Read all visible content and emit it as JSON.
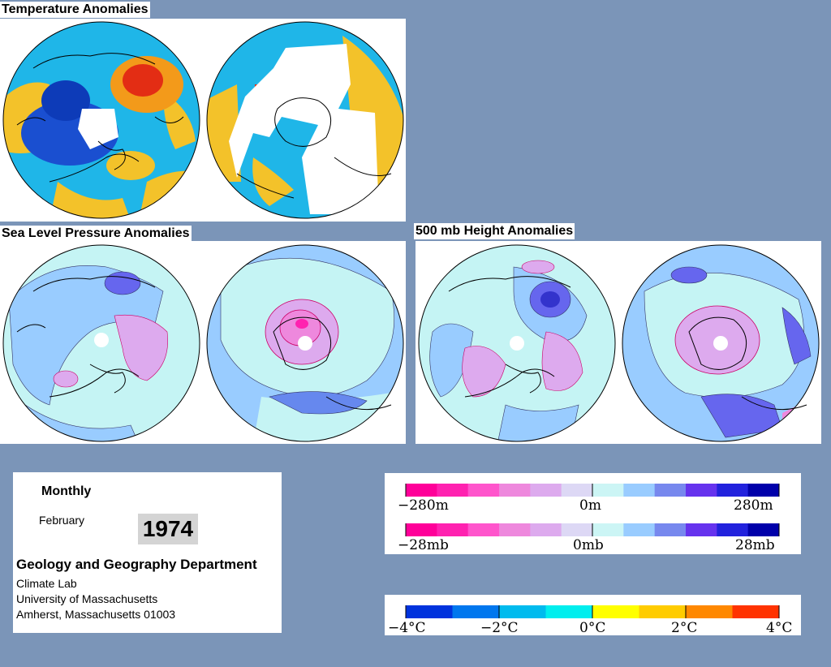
{
  "sections": {
    "temperature_title": "Temperature Anomalies",
    "slp_title": "Sea Level Pressure Anomalies",
    "height_title": "500 mb Height Anomalies"
  },
  "info": {
    "period": "Monthly",
    "month": "February",
    "year": "1974",
    "department": "Geology and Geography Department",
    "lab": "Climate Lab",
    "university": "University of Massachusetts",
    "address": "Amherst, Massachusetts 01003"
  },
  "legends": {
    "height": {
      "left": "−280m",
      "center": "0m",
      "right": "280m"
    },
    "pressure": {
      "left": "−28mb",
      "center": "0mb",
      "right": "28mb"
    },
    "temperature": [
      "−4°C",
      "−2°C",
      "0°C",
      "2°C",
      "4°C"
    ]
  },
  "colors": {
    "background": "#7b95b8",
    "pressure_scale": [
      "#ff0099",
      "#ff22b0",
      "#ff55cc",
      "#ee88dd",
      "#ddaaee",
      "#ddd8f5",
      "#ccf5f5",
      "#99ccff",
      "#7788ee",
      "#6633ee",
      "#2222dd",
      "#0000aa"
    ],
    "temperature_scale": [
      "#0033dd",
      "#0077ee",
      "#00bbee",
      "#00eeee",
      "#ffff00",
      "#ffcc00",
      "#ff8800",
      "#ff3300"
    ],
    "ocean_warm": "#f3c22a",
    "cold": "#1a4fd0",
    "hot": "#e32d14"
  }
}
